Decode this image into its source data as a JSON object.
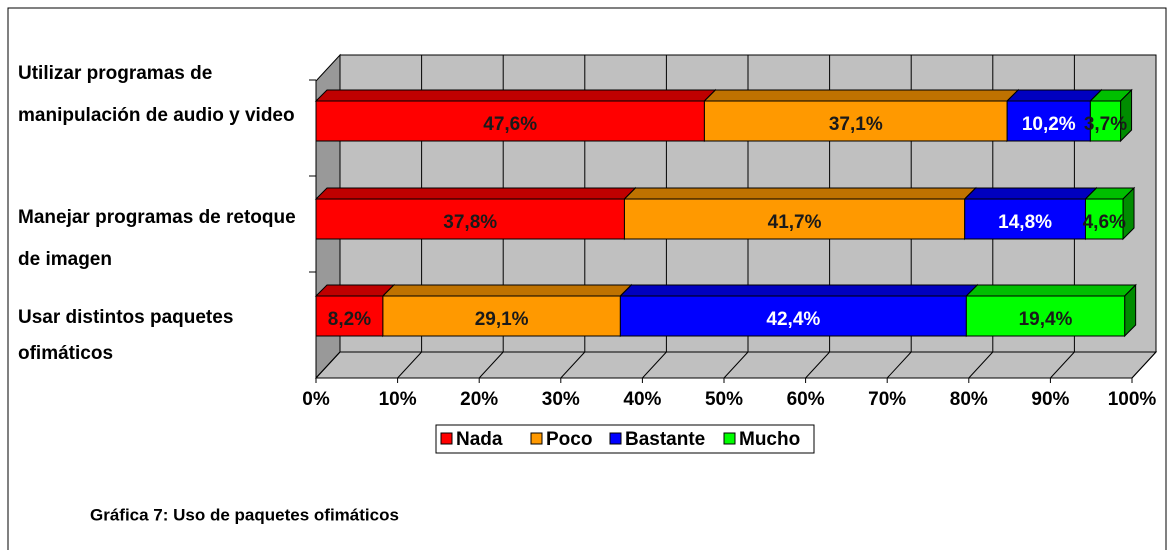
{
  "chart_data": {
    "type": "stacked_barh",
    "categories": [
      "Utilizar programas de manipulación de audio y video",
      "Manejar programas de retoque de imagen",
      "Usar distintos paquetes ofimáticos"
    ],
    "series": [
      {
        "name": "Nada",
        "color": "#ff0000",
        "label_color": "#1a1a1a",
        "values": [
          47.6,
          37.8,
          8.2
        ],
        "value_labels": [
          "47,6%",
          "37,8%",
          "8,2%"
        ]
      },
      {
        "name": "Poco",
        "color": "#ff9900",
        "label_color": "#1a1a1a",
        "values": [
          37.1,
          41.7,
          29.1
        ],
        "value_labels": [
          "37,1%",
          "41,7%",
          "29,1%"
        ]
      },
      {
        "name": "Bastante",
        "color": "#0000ff",
        "label_color": "#ffffff",
        "values": [
          10.2,
          14.8,
          42.4
        ],
        "value_labels": [
          "10,2%",
          "14,8%",
          "42,4%"
        ]
      },
      {
        "name": "Mucho",
        "color": "#00ff00",
        "label_color": "#1a1a1a",
        "values": [
          3.7,
          4.6,
          19.4
        ],
        "value_labels": [
          "3,7%",
          "4,6%",
          "19,4%"
        ]
      }
    ],
    "xlim": [
      0,
      100
    ],
    "xticks": [
      {
        "value": 0,
        "label": "0%"
      },
      {
        "value": 10,
        "label": "10%"
      },
      {
        "value": 20,
        "label": "20%"
      },
      {
        "value": 30,
        "label": "30%"
      },
      {
        "value": 40,
        "label": "40%"
      },
      {
        "value": 50,
        "label": "50%"
      },
      {
        "value": 60,
        "label": "60%"
      },
      {
        "value": 70,
        "label": "70%"
      },
      {
        "value": 80,
        "label": "80%"
      },
      {
        "value": 90,
        "label": "90%"
      },
      {
        "value": 100,
        "label": "100%"
      }
    ],
    "grid": true,
    "legend": "bottom",
    "caption": "Gráfica 7: Uso de paquetes ofimáticos"
  }
}
